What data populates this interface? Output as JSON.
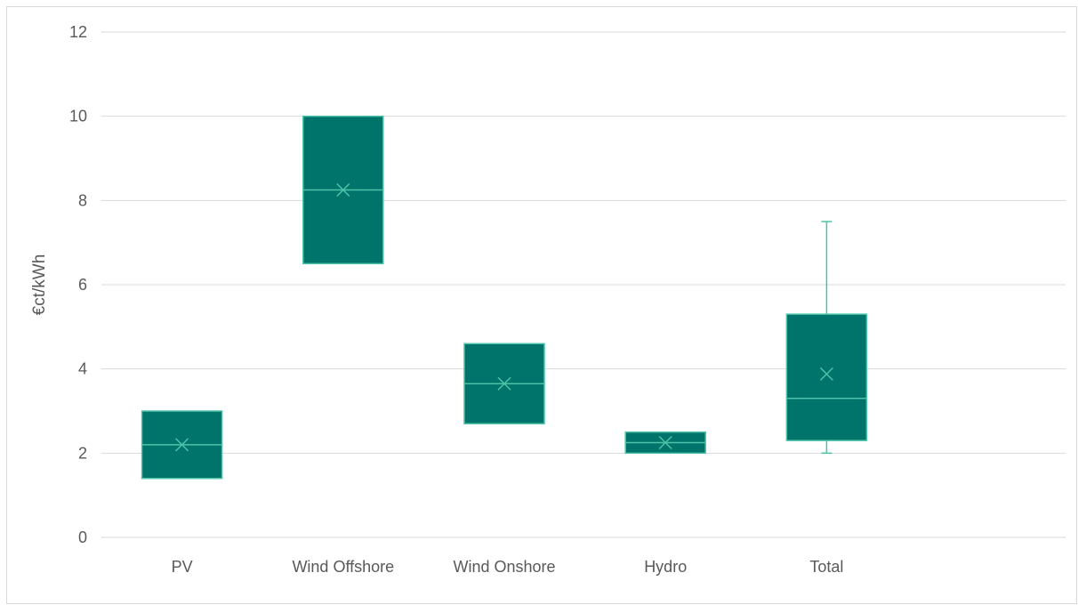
{
  "chart_data": {
    "type": "box",
    "title": "",
    "xlabel": "",
    "ylabel": "€ct/kWh",
    "ylim": [
      0,
      12
    ],
    "yticks": [
      0,
      2,
      4,
      6,
      8,
      10,
      12
    ],
    "grid": true,
    "legend": "none",
    "categories": [
      "PV",
      "Wind Offshore",
      "Wind Onshore",
      "Hydro",
      "Total"
    ],
    "boxes": [
      {
        "category": "PV",
        "min": 1.4,
        "q1": 1.4,
        "median": 2.2,
        "mean": 2.2,
        "q3": 3.0,
        "max": 3.0
      },
      {
        "category": "Wind Offshore",
        "min": 6.5,
        "q1": 6.5,
        "median": 8.25,
        "mean": 8.25,
        "q3": 10.0,
        "max": 10.0
      },
      {
        "category": "Wind Onshore",
        "min": 2.7,
        "q1": 2.7,
        "median": 3.65,
        "mean": 3.65,
        "q3": 4.6,
        "max": 4.6
      },
      {
        "category": "Hydro",
        "min": 2.0,
        "q1": 2.0,
        "median": 2.25,
        "mean": 2.25,
        "q3": 2.5,
        "max": 2.5
      },
      {
        "category": "Total",
        "min": 2.0,
        "q1": 2.3,
        "median": 3.3,
        "mean": 3.88,
        "q3": 5.3,
        "max": 7.5
      }
    ],
    "colors": {
      "box_fill": "#00736a",
      "box_edge": "#4cc3a9",
      "whisker": "#4cc3a9",
      "grid": "#d9d9d9",
      "text": "#595959"
    }
  }
}
